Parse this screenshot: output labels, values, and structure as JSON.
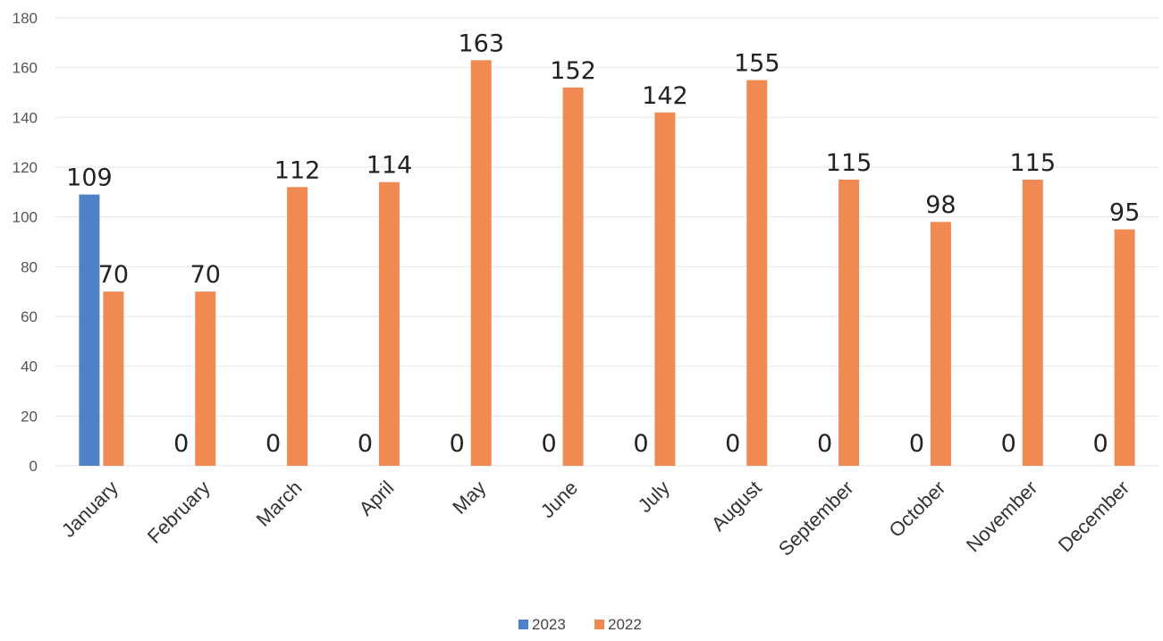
{
  "chart_data": {
    "type": "bar",
    "categories": [
      "January",
      "February",
      "March",
      "April",
      "May",
      "June",
      "July",
      "August",
      "September",
      "October",
      "November",
      "December"
    ],
    "series": [
      {
        "name": "2023",
        "color": "#4f81c8",
        "values": [
          109,
          0,
          0,
          0,
          0,
          0,
          0,
          0,
          0,
          0,
          0,
          0
        ]
      },
      {
        "name": "2022",
        "color": "#f08a52",
        "values": [
          70,
          70,
          112,
          114,
          163,
          152,
          142,
          155,
          115,
          98,
          115,
          95
        ]
      }
    ],
    "ylim": [
      0,
      180
    ],
    "yticks": [
      0,
      20,
      40,
      60,
      80,
      100,
      120,
      140,
      160,
      180
    ],
    "grid": true,
    "legend": "bottom-center",
    "data_labels": true
  }
}
